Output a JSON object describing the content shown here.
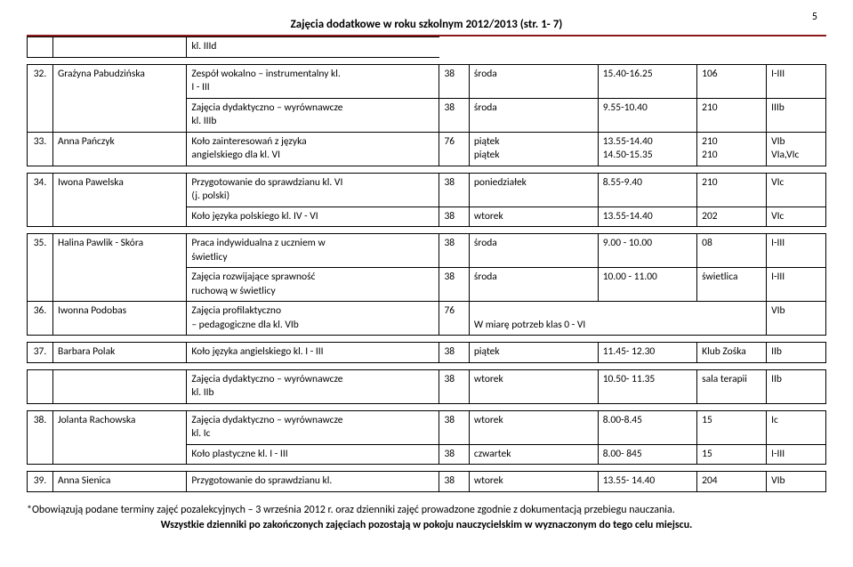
{
  "page_number": "5",
  "header_title": "Zajęcia dodatkowe w roku szkolnym 2012/2013  (str. 1- 7)",
  "mini_cell": "kl. IIId",
  "groups": [
    {
      "num": "32.",
      "name": "Grażyna Pabudzińska",
      "rows": [
        {
          "desc": "Zespół wokalno – instrumentalny kl.\nI - III",
          "c1": "38",
          "c2": "środa",
          "c3": "15.40-16.25",
          "c4": "106",
          "c5": "I-III"
        },
        {
          "desc": "Zajęcia dydaktyczno – wyrównawcze\nkl. IIIb",
          "c1": "38",
          "c2": "środa",
          "c3": "9.55-10.40",
          "c4": "210",
          "c5": "IIIb"
        }
      ]
    },
    {
      "num": "33.",
      "name": "Anna Pańczyk",
      "rows": [
        {
          "desc": "Koło zainteresowań z języka\nangielskiego dla kl. VI",
          "c1": "76",
          "c2": "piątek\npiątek",
          "c3": "13.55-14.40\n14.50-15.35",
          "c4": "210\n210",
          "c5": "VIb\nVIa,VIc"
        }
      ]
    }
  ],
  "groups2": [
    {
      "num": "34.",
      "name": "Iwona Pawelska",
      "rows": [
        {
          "desc": "Przygotowanie do sprawdzianu kl. VI\n(j. polski)",
          "c1": "38",
          "c2": "poniedziałek",
          "c3": "8.55-9.40",
          "c4": "210",
          "c5": "VIc"
        },
        {
          "desc": "Koło języka polskiego kl. IV - VI",
          "c1": "38",
          "c2": "wtorek",
          "c3": "13.55-14.40",
          "c4": "202",
          "c5": "VIc"
        }
      ]
    }
  ],
  "groups3": [
    {
      "num": "35.",
      "name": "Halina Pawlik - Skóra",
      "rows": [
        {
          "desc": "Praca indywidualna z uczniem w\nświetlicy",
          "c1": "38",
          "c2": "środa",
          "c3": "9.00 - 10.00",
          "c4": "08",
          "c5": "I-III"
        },
        {
          "desc": "Zajęcia rozwijające sprawność\nruchową w świetlicy",
          "c1": "38",
          "c2": "środa",
          "c3": "10.00 - 11.00",
          "c4": "świetlica",
          "c5": "I-III"
        }
      ]
    },
    {
      "num": "36.",
      "name": "Iwonna Podobas",
      "rows": [
        {
          "desc": "Zajęcia profilaktyczno\n– pedagogiczne dla kl. VIb",
          "c1": "76",
          "c2": "\nW miarę potrzeb klas 0 - VI",
          "c2_span": 3,
          "c5": "VIb"
        }
      ]
    }
  ],
  "groups4": [
    {
      "num": "37.",
      "name": "Barbara Polak",
      "rows": [
        {
          "desc": "Koło języka angielskiego  kl. I - III",
          "c1": "38",
          "c2": "piątek",
          "c3": "11.45- 12.30",
          "c4": "Klub Zośka",
          "c5": "IIb"
        }
      ]
    }
  ],
  "groups4b": [
    {
      "rows": [
        {
          "desc": "Zajęcia dydaktyczno – wyrównawcze\nkl. IIb",
          "c1": "38",
          "c2": "wtorek",
          "c3": "10.50- 11.35",
          "c4": "sala terapii",
          "c5": "IIb"
        }
      ]
    }
  ],
  "groups5": [
    {
      "num": "38.",
      "name": "Jolanta Rachowska",
      "rows": [
        {
          "desc": "Zajęcia dydaktyczno – wyrównawcze\nkl. Ic",
          "c1": "38",
          "c2": "wtorek",
          "c3": "8.00-8.45",
          "c4": "15",
          "c5": "Ic"
        },
        {
          "desc": "Koło plastyczne kl. I - III",
          "c1": "38",
          "c2": "czwartek",
          "c3": "8.00- 845",
          "c4": "15",
          "c5": "I-III"
        }
      ]
    }
  ],
  "groups6": [
    {
      "num": "39.",
      "name": "Anna Sienica",
      "rows": [
        {
          "desc": "Przygotowanie do sprawdzianu kl.",
          "c1": "38",
          "c2": "wtorek",
          "c3": "13.55- 14.40",
          "c4": "204",
          "c5": "VIb"
        }
      ]
    }
  ],
  "footer_l1": "*Obowiązują podane terminy zajęć pozalekcyjnych – 3 września 2012 r. oraz dzienniki zajęć prowadzone zgodnie z  dokumentacją  przebiegu nauczania.",
  "footer_l2": "Wszystkie dzienniki po zakończonych zajęciach pozostają w pokoju nauczycielskim w  wyznaczonym do tego celu miejscu."
}
